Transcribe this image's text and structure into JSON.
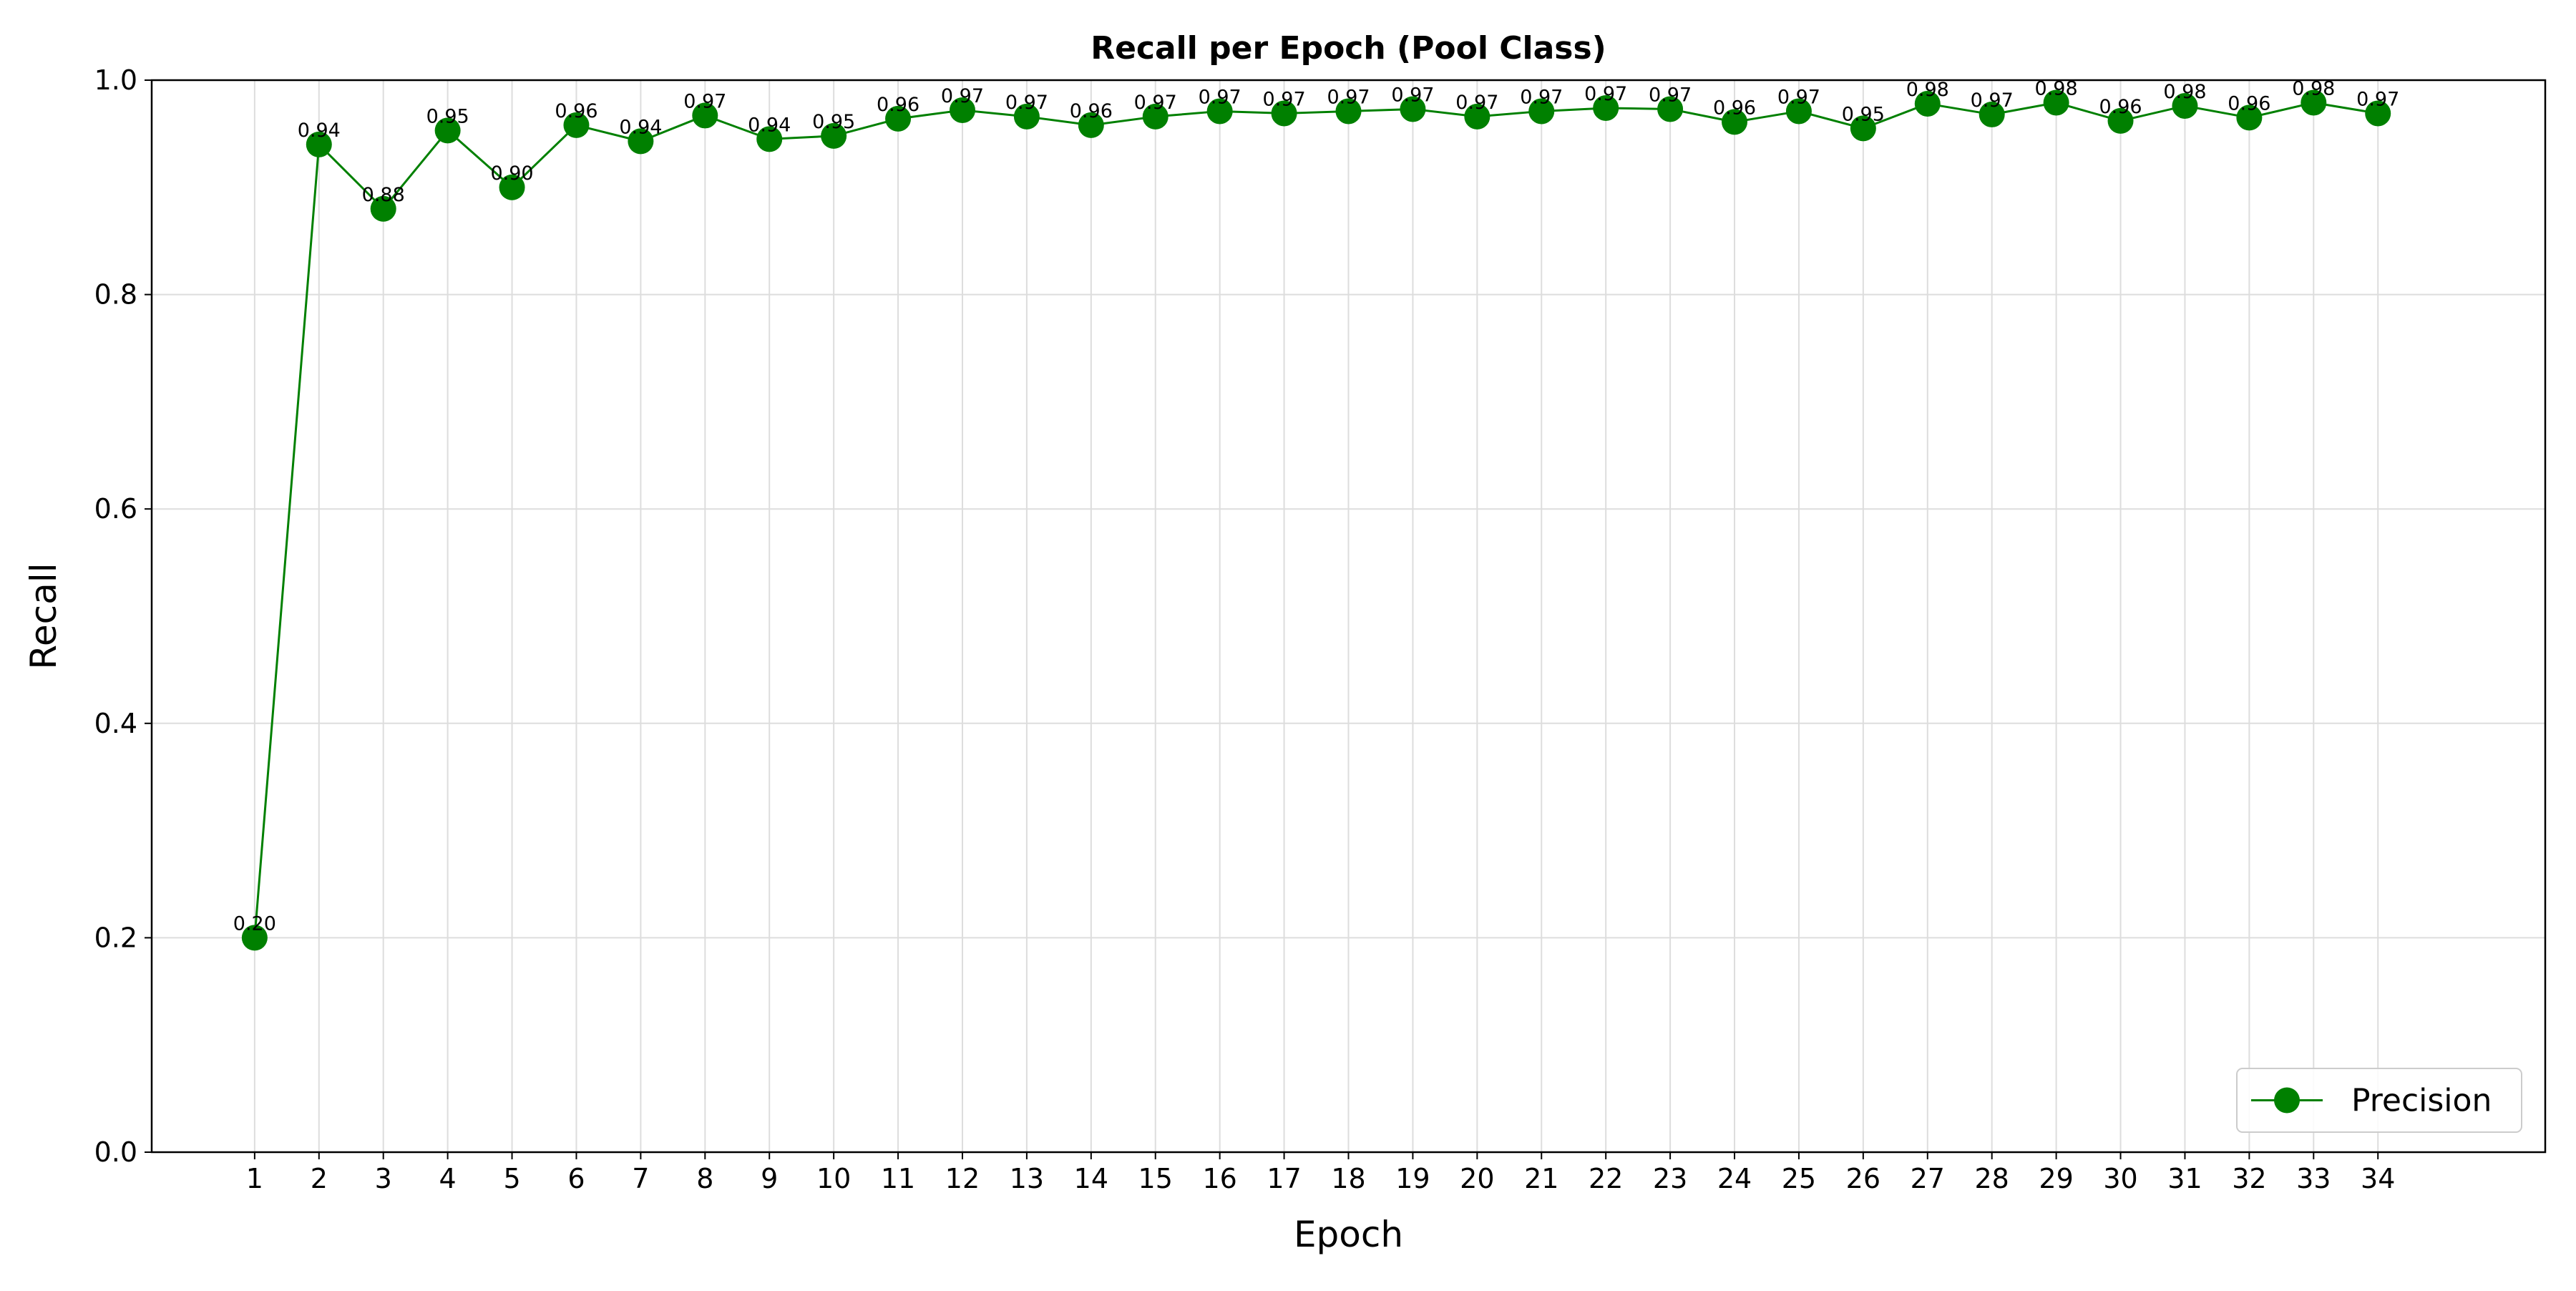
{
  "chart_data": {
    "type": "line",
    "title": "Recall per Epoch (Pool Class)",
    "xlabel": "Epoch",
    "ylabel": "Recall",
    "xlim": [
      -0.6,
      36.6
    ],
    "ylim": [
      0.0,
      1.0
    ],
    "x_ticks": [
      1,
      2,
      3,
      4,
      5,
      6,
      7,
      8,
      9,
      10,
      11,
      12,
      13,
      14,
      15,
      16,
      17,
      18,
      19,
      20,
      21,
      22,
      23,
      24,
      25,
      26,
      27,
      28,
      29,
      30,
      31,
      32,
      33,
      34
    ],
    "y_ticks": [
      0.0,
      0.2,
      0.4,
      0.6,
      0.8,
      1.0
    ],
    "grid": true,
    "legend_position": "bottom-right",
    "series": [
      {
        "name": "Precision",
        "color": "#008000",
        "marker": "circle",
        "x": [
          1,
          2,
          3,
          4,
          5,
          6,
          7,
          8,
          9,
          10,
          11,
          12,
          13,
          14,
          15,
          16,
          17,
          18,
          19,
          20,
          21,
          22,
          23,
          24,
          25,
          26,
          27,
          28,
          29,
          30,
          31,
          32,
          33,
          34
        ],
        "values": [
          0.2,
          0.94,
          0.88,
          0.953,
          0.9,
          0.958,
          0.943,
          0.967,
          0.945,
          0.948,
          0.964,
          0.972,
          0.966,
          0.958,
          0.966,
          0.971,
          0.969,
          0.971,
          0.973,
          0.966,
          0.971,
          0.974,
          0.973,
          0.961,
          0.971,
          0.955,
          0.978,
          0.968,
          0.979,
          0.962,
          0.976,
          0.965,
          0.979,
          0.969
        ],
        "labels": [
          "0.20",
          "0.94",
          "0.88",
          "0.95",
          "0.90",
          "0.96",
          "0.94",
          "0.97",
          "0.94",
          "0.95",
          "0.96",
          "0.97",
          "0.97",
          "0.96",
          "0.97",
          "0.97",
          "0.97",
          "0.97",
          "0.97",
          "0.97",
          "0.97",
          "0.97",
          "0.97",
          "0.96",
          "0.97",
          "0.95",
          "0.98",
          "0.97",
          "0.98",
          "0.96",
          "0.98",
          "0.96",
          "0.98",
          "0.97"
        ]
      }
    ]
  }
}
